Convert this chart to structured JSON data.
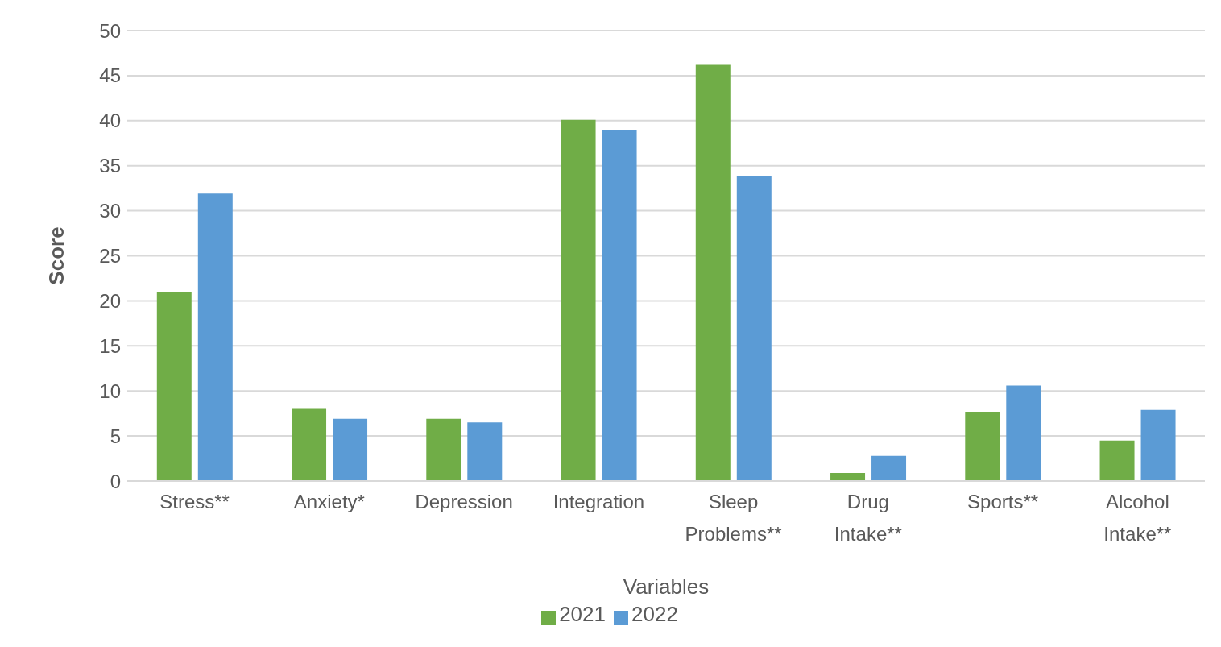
{
  "chart_data": {
    "type": "bar",
    "xlabel": "Variables",
    "ylabel": "Score",
    "categories": [
      "Stress**",
      "Anxiety*",
      "Depression",
      "Integration",
      "Sleep Problems**",
      "Drug Intake**",
      "Sports**",
      "Alcohol Intake**"
    ],
    "series": [
      {
        "name": "2021",
        "color": "#70ad47",
        "values": [
          21,
          8.1,
          6.9,
          40.1,
          46.2,
          0.9,
          7.7,
          4.5
        ]
      },
      {
        "name": "2022",
        "color": "#5b9bd5",
        "values": [
          31.9,
          6.9,
          6.5,
          39,
          33.9,
          2.8,
          10.6,
          7.9
        ]
      }
    ],
    "ylim": [
      0,
      50
    ],
    "yticks": [
      0,
      5,
      10,
      15,
      20,
      25,
      30,
      35,
      40,
      45,
      50
    ],
    "grid": "y",
    "legend": "bottom"
  }
}
